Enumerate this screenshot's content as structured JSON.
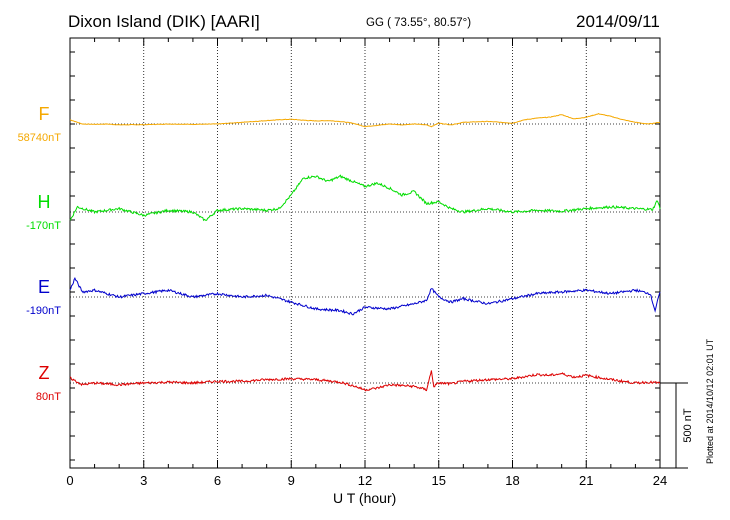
{
  "header": {
    "title": "Dixon Island (DIK)  [AARI]",
    "coords": "GG ( 73.55°,  80.57°)",
    "date": "2014/09/11"
  },
  "footer": {
    "xlabel": "U T (hour)",
    "plotted": "Plotted at 2014/10/12 02:01 UT"
  },
  "scale_label": "500 nT",
  "chart_data": {
    "type": "line",
    "title": "Dixon Island (DIK)  [AARI]",
    "xlabel": "U T (hour)",
    "ylabel": "",
    "xlim": [
      0,
      24
    ],
    "xticks": [
      "0",
      "3",
      "6",
      "9",
      "12",
      "15",
      "18",
      "21",
      "24"
    ],
    "scale_bar_nT": 500,
    "series": [
      {
        "name": "F",
        "baseline_label": "58740nT",
        "color": "#f5a800",
        "x": [
          0,
          0.5,
          1,
          1.5,
          2,
          3,
          4,
          5,
          6,
          7,
          8,
          8.5,
          9,
          9.5,
          10,
          10.5,
          11,
          11.5,
          12,
          12.5,
          13,
          13.5,
          14,
          14.5,
          14.7,
          15,
          15.5,
          16,
          17,
          18,
          18.5,
          19,
          19.5,
          20,
          20.5,
          21,
          21.5,
          22,
          22.5,
          23,
          23.5,
          24
        ],
        "values": [
          25,
          0,
          -2,
          0,
          -5,
          -4,
          0,
          -2,
          0,
          10,
          20,
          25,
          28,
          22,
          18,
          20,
          15,
          5,
          -15,
          -8,
          0,
          -5,
          0,
          -5,
          -15,
          5,
          -5,
          10,
          15,
          5,
          25,
          35,
          40,
          55,
          30,
          40,
          60,
          45,
          25,
          10,
          0,
          10
        ]
      },
      {
        "name": "H",
        "baseline_label": "-170nT",
        "color": "#00dd00",
        "x": [
          0,
          0.3,
          1,
          2,
          3,
          4,
          5,
          5.5,
          6,
          7,
          8,
          8.5,
          9,
          9.5,
          10,
          10.5,
          11,
          11.5,
          12,
          12.5,
          13,
          13.5,
          14,
          14.5,
          15,
          15.5,
          16,
          17,
          18,
          19,
          20,
          21,
          22,
          23,
          23.7,
          23.9,
          24
        ],
        "values": [
          -50,
          30,
          0,
          20,
          -20,
          10,
          0,
          -50,
          10,
          20,
          10,
          20,
          100,
          200,
          210,
          180,
          210,
          180,
          150,
          170,
          140,
          100,
          120,
          50,
          60,
          20,
          0,
          20,
          0,
          10,
          5,
          20,
          30,
          20,
          15,
          70,
          20
        ]
      },
      {
        "name": "E",
        "baseline_label": "-190nT",
        "color": "#0000cc",
        "x": [
          0,
          0.2,
          0.5,
          1,
          2,
          3,
          4,
          5,
          6,
          7,
          8,
          9,
          9.5,
          10,
          11,
          11.5,
          12,
          13,
          14,
          14.5,
          14.7,
          15,
          15.5,
          16,
          17,
          18,
          19,
          20,
          21,
          22,
          23,
          23.6,
          23.8,
          24
        ],
        "values": [
          40,
          110,
          30,
          40,
          0,
          20,
          40,
          0,
          20,
          0,
          10,
          -30,
          -50,
          -70,
          -80,
          -100,
          -60,
          -70,
          -40,
          -20,
          50,
          0,
          -30,
          -10,
          -40,
          -10,
          20,
          30,
          40,
          20,
          40,
          20,
          -80,
          30
        ]
      },
      {
        "name": "Z",
        "baseline_label": "80nT",
        "color": "#dd0000",
        "x": [
          0,
          0.3,
          0.5,
          1,
          2,
          3,
          4,
          5,
          6,
          7,
          8,
          9,
          10,
          11,
          11.5,
          12,
          12.5,
          13,
          14,
          14.5,
          14.7,
          14.8,
          15,
          15.5,
          16,
          17,
          18,
          19,
          19.5,
          20,
          20.5,
          21,
          22,
          23,
          23.5,
          24
        ],
        "values": [
          30,
          5,
          -10,
          0,
          -10,
          0,
          5,
          0,
          10,
          10,
          20,
          25,
          20,
          5,
          -15,
          -40,
          -30,
          -10,
          -20,
          -40,
          70,
          -20,
          0,
          -5,
          10,
          20,
          25,
          50,
          45,
          55,
          35,
          45,
          20,
          0,
          5,
          0
        ]
      }
    ]
  }
}
